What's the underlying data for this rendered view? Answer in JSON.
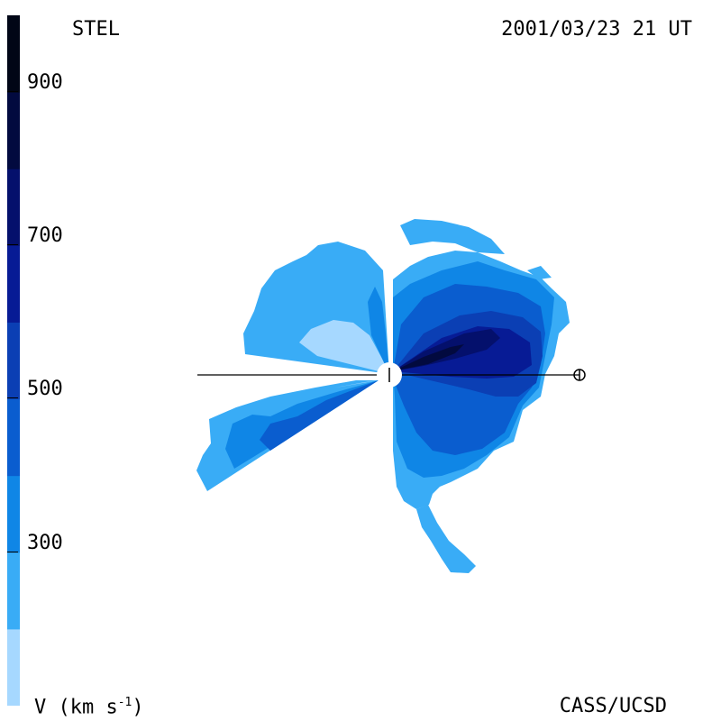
{
  "header": {
    "observatory": "STEL",
    "timestamp": "2001/03/23 21 UT"
  },
  "footer": {
    "credit": "CASS/UCSD",
    "units_prefix": "V (km s",
    "units_exp": "-1",
    "units_suffix": ")"
  },
  "colorbar": {
    "ticks": [
      "900",
      "700",
      "500",
      "300"
    ],
    "levels": [
      {
        "color": "#a6d8ff"
      },
      {
        "color": "#39acf6"
      },
      {
        "color": "#0f86e6"
      },
      {
        "color": "#0a5dcf"
      },
      {
        "color": "#0b3fb4"
      },
      {
        "color": "#071b95"
      },
      {
        "color": "#04106c"
      },
      {
        "color": "#020a3f"
      },
      {
        "color": "#010616"
      }
    ]
  },
  "colors": {
    "ring": "#000000",
    "axis": "#000000"
  }
}
